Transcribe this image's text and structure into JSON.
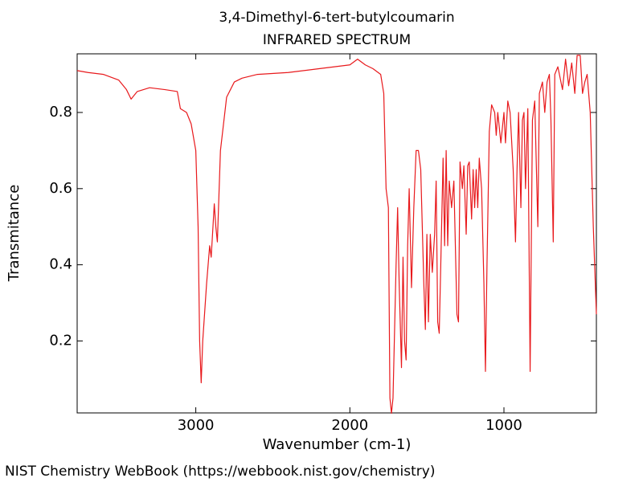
{
  "chart_data": {
    "type": "line",
    "title": "3,4-Dimethyl-6-tert-butylcoumarin",
    "subtitle": "INFRARED SPECTRUM",
    "x_label": "Wavenumber (cm-1)",
    "y_label": "Transmitance",
    "color": "#e8191c",
    "xlim": [
      3770,
      400
    ],
    "ylim": [
      0.011,
      0.954
    ],
    "xticks": [
      3000,
      2000,
      1000
    ],
    "yticks": [
      0.2,
      0.4,
      0.6,
      0.8
    ],
    "x": [
      3770,
      3700,
      3600,
      3500,
      3450,
      3420,
      3380,
      3300,
      3200,
      3120,
      3100,
      3060,
      3030,
      3000,
      2985,
      2975,
      2965,
      2955,
      2930,
      2910,
      2900,
      2880,
      2870,
      2860,
      2840,
      2800,
      2750,
      2700,
      2600,
      2400,
      2200,
      2000,
      1950,
      1900,
      1850,
      1800,
      1780,
      1765,
      1750,
      1740,
      1730,
      1720,
      1700,
      1690,
      1680,
      1665,
      1655,
      1645,
      1635,
      1625,
      1615,
      1600,
      1585,
      1570,
      1555,
      1540,
      1520,
      1510,
      1500,
      1490,
      1478,
      1465,
      1450,
      1440,
      1430,
      1420,
      1410,
      1395,
      1385,
      1375,
      1365,
      1355,
      1340,
      1325,
      1305,
      1295,
      1285,
      1270,
      1260,
      1245,
      1235,
      1225,
      1210,
      1200,
      1190,
      1180,
      1170,
      1160,
      1145,
      1130,
      1120,
      1110,
      1095,
      1080,
      1060,
      1050,
      1040,
      1020,
      1000,
      990,
      975,
      960,
      940,
      925,
      915,
      905,
      890,
      880,
      870,
      860,
      845,
      830,
      815,
      800,
      780,
      770,
      750,
      735,
      720,
      705,
      695,
      680,
      670,
      650,
      620,
      600,
      580,
      560,
      540,
      525,
      505,
      490,
      475,
      460,
      440,
      420,
      400
    ],
    "values": [
      0.91,
      0.905,
      0.9,
      0.885,
      0.86,
      0.835,
      0.855,
      0.865,
      0.86,
      0.855,
      0.81,
      0.8,
      0.77,
      0.7,
      0.5,
      0.2,
      0.09,
      0.2,
      0.35,
      0.45,
      0.42,
      0.56,
      0.5,
      0.46,
      0.7,
      0.84,
      0.88,
      0.89,
      0.9,
      0.905,
      0.915,
      0.925,
      0.94,
      0.925,
      0.915,
      0.9,
      0.85,
      0.6,
      0.55,
      0.05,
      0.01,
      0.05,
      0.4,
      0.55,
      0.35,
      0.13,
      0.42,
      0.2,
      0.15,
      0.45,
      0.6,
      0.34,
      0.55,
      0.7,
      0.7,
      0.65,
      0.35,
      0.23,
      0.48,
      0.25,
      0.48,
      0.38,
      0.48,
      0.62,
      0.25,
      0.22,
      0.4,
      0.68,
      0.45,
      0.7,
      0.45,
      0.62,
      0.55,
      0.62,
      0.27,
      0.25,
      0.67,
      0.6,
      0.66,
      0.48,
      0.66,
      0.67,
      0.52,
      0.65,
      0.55,
      0.65,
      0.55,
      0.68,
      0.6,
      0.35,
      0.12,
      0.4,
      0.75,
      0.82,
      0.8,
      0.74,
      0.8,
      0.72,
      0.8,
      0.72,
      0.83,
      0.8,
      0.65,
      0.46,
      0.65,
      0.8,
      0.55,
      0.78,
      0.8,
      0.6,
      0.81,
      0.12,
      0.78,
      0.83,
      0.5,
      0.85,
      0.88,
      0.8,
      0.88,
      0.9,
      0.78,
      0.46,
      0.9,
      0.92,
      0.86,
      0.94,
      0.87,
      0.93,
      0.85,
      0.95,
      0.95,
      0.85,
      0.88,
      0.9,
      0.8,
      0.5,
      0.27
    ]
  },
  "footer": "NIST Chemistry WebBook (https://webbook.nist.gov/chemistry)"
}
